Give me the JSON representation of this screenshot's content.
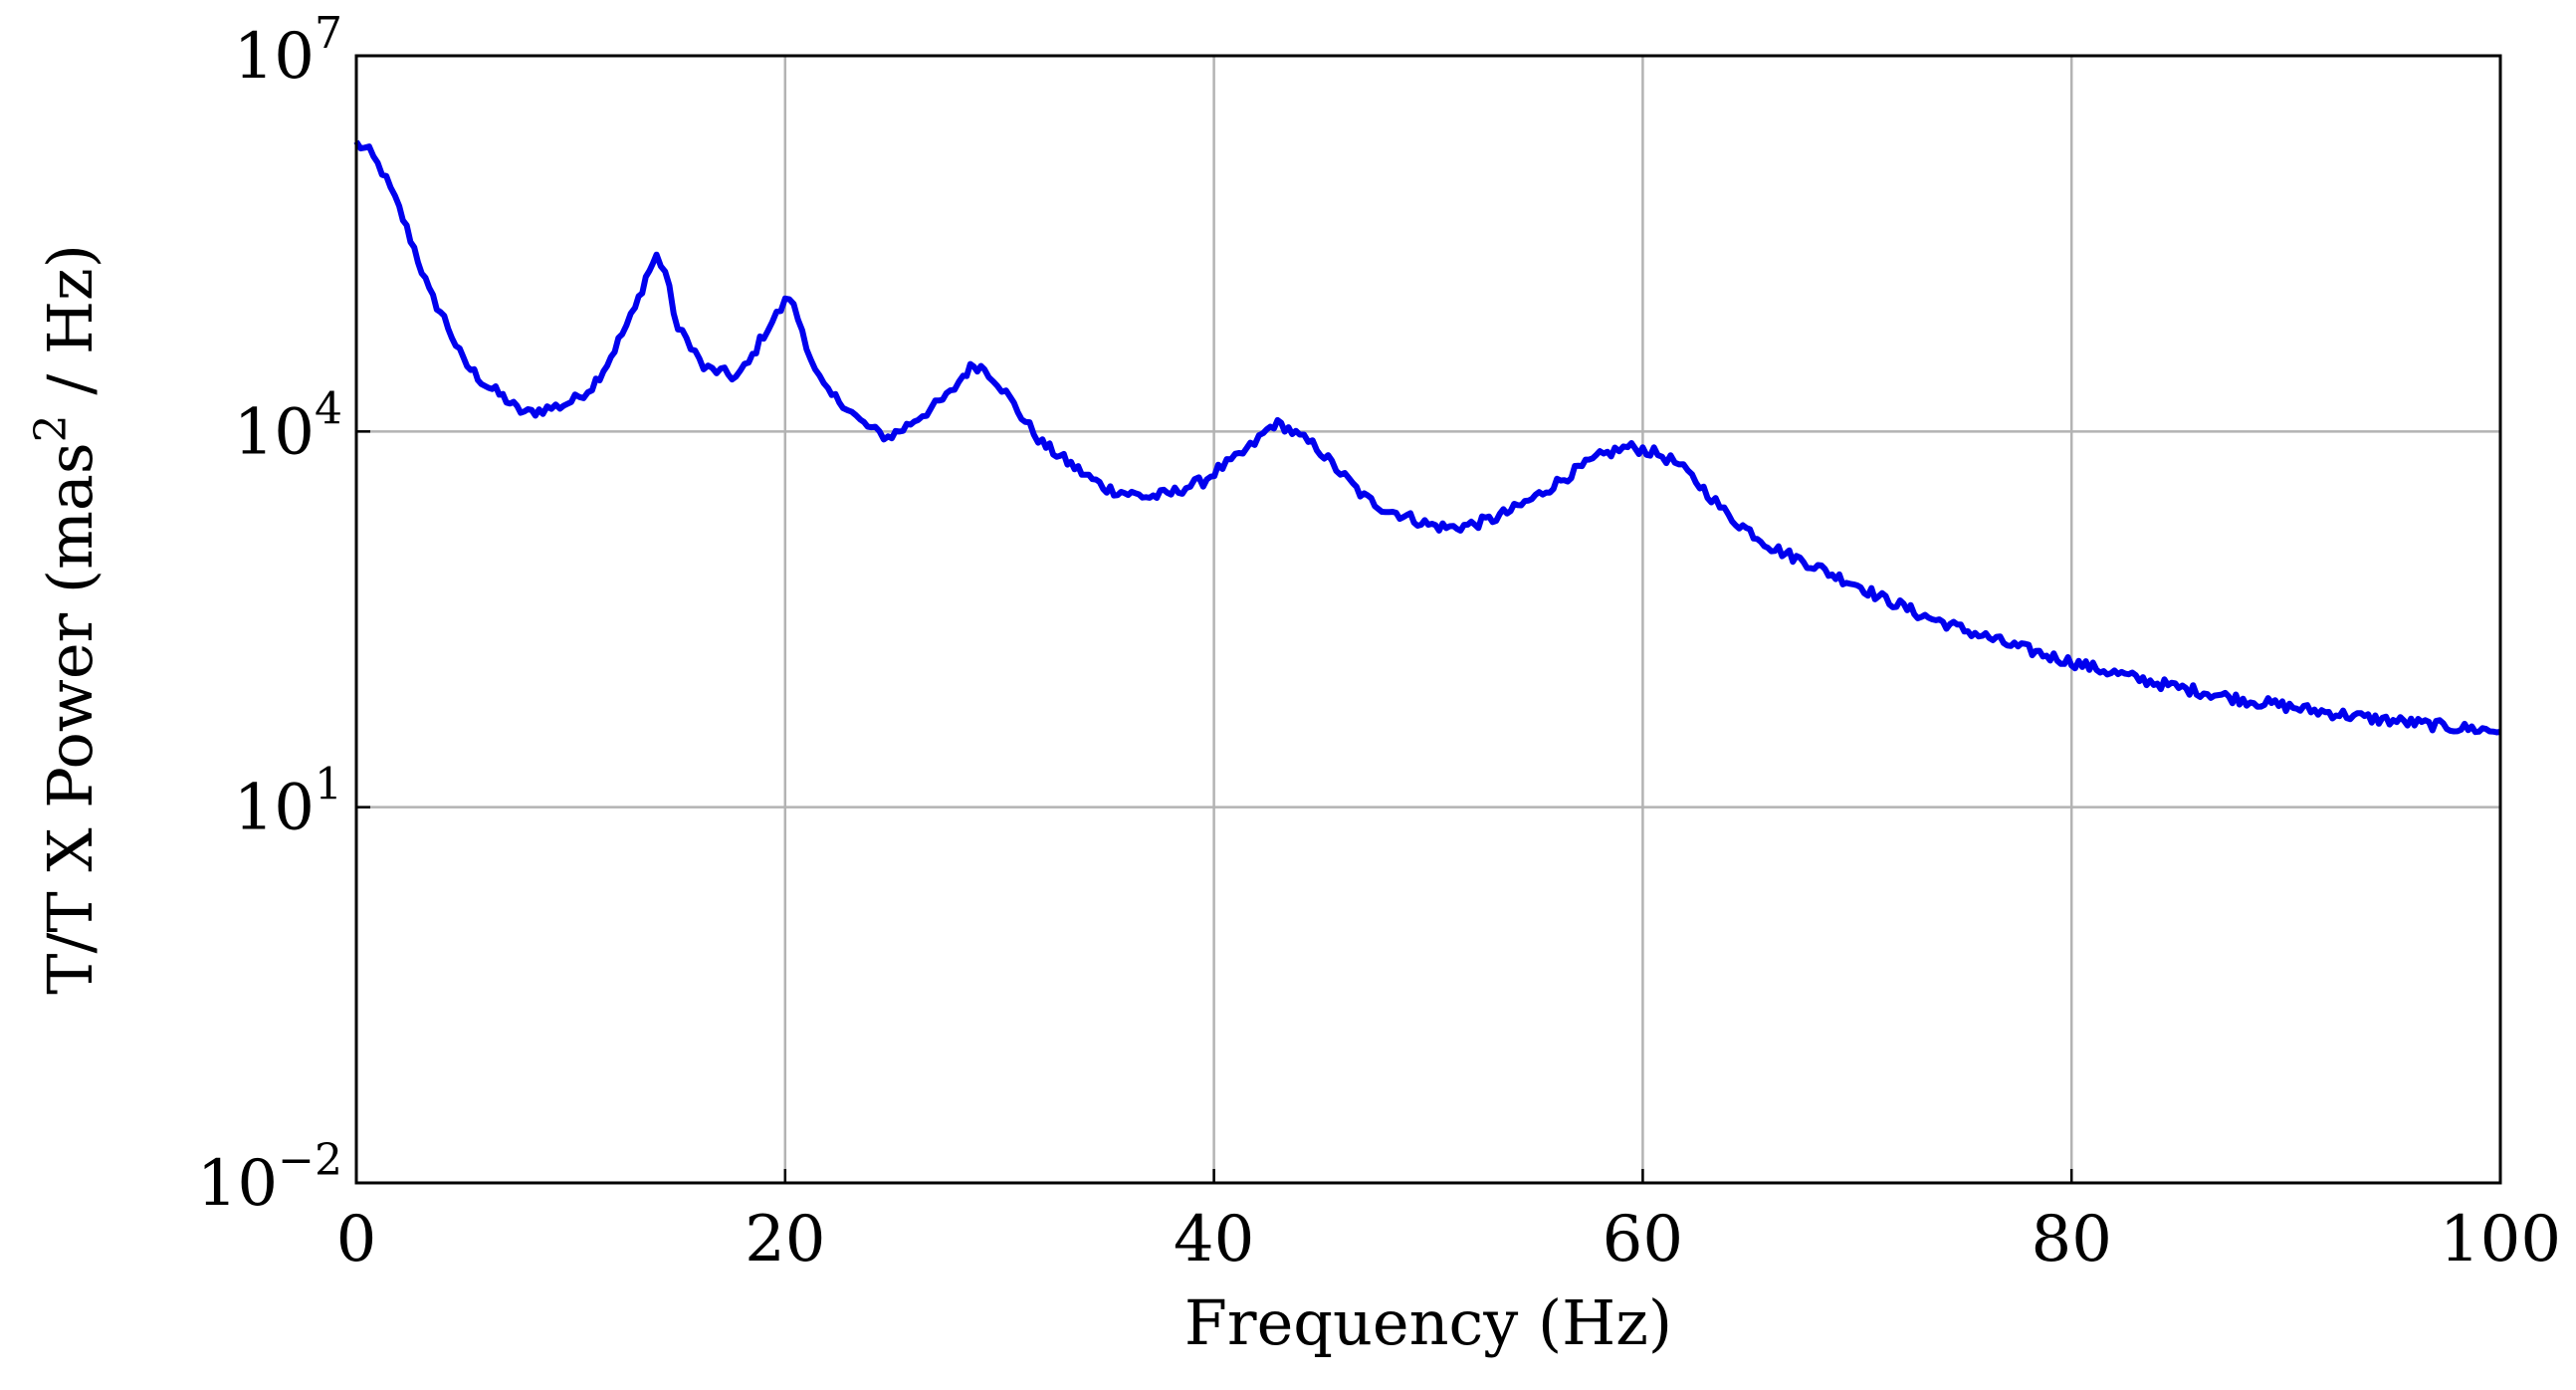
{
  "chart_data": {
    "type": "line",
    "title": "",
    "xlabel": "Frequency (Hz)",
    "ylabel": "T/T X Power (mas² / Hz)",
    "ylabel_parts": {
      "pre": "T/T X Power (mas",
      "sup": "2",
      "post": " / Hz)"
    },
    "xlim": [
      0,
      100
    ],
    "ylim": [
      0.01,
      10000000
    ],
    "yscale": "log",
    "grid": true,
    "x_ticks": [
      {
        "value": 0,
        "label": "0"
      },
      {
        "value": 20,
        "label": "20"
      },
      {
        "value": 40,
        "label": "40"
      },
      {
        "value": 60,
        "label": "60"
      },
      {
        "value": 80,
        "label": "80"
      },
      {
        "value": 100,
        "label": "100"
      }
    ],
    "y_ticks": [
      {
        "value": 0.01,
        "base": "10",
        "exp": "−2"
      },
      {
        "value": 10,
        "base": "10",
        "exp": "1"
      },
      {
        "value": 10000,
        "base": "10",
        "exp": "4"
      },
      {
        "value": 10000000,
        "base": "10",
        "exp": "7"
      }
    ],
    "series": [
      {
        "color": "#0000ee",
        "x": [
          0,
          0.6,
          1.2,
          2,
          2.7,
          3.4,
          4.1,
          5,
          6,
          7,
          7.5,
          8,
          8.7,
          9.5,
          10.2,
          11,
          11.7,
          12.4,
          13,
          13.5,
          14,
          14.4,
          15,
          15.6,
          16.2,
          17,
          17.7,
          18.3,
          19,
          19.6,
          20.2,
          20.8,
          21.4,
          22,
          22.7,
          23.5,
          24.2,
          24.8,
          25.5,
          26.2,
          27,
          27.7,
          28.3,
          28.8,
          29.3,
          29.9,
          30.5,
          31.2,
          32,
          33,
          34,
          35,
          36,
          37,
          38,
          38.7,
          39.5,
          40.2,
          41,
          41.7,
          42.3,
          42.8,
          43.3,
          44,
          44.8,
          45.5,
          46.3,
          47,
          48,
          49,
          50,
          51,
          52,
          53,
          54,
          55,
          56,
          57,
          58,
          58.7,
          59.3,
          60,
          60.7,
          61.5,
          62.3,
          63.2,
          64,
          65,
          66,
          67,
          68,
          69,
          70,
          71,
          72,
          73,
          74,
          75,
          76,
          77,
          78,
          79,
          80,
          81,
          82,
          83,
          84,
          85,
          86,
          87,
          88,
          89,
          90,
          91,
          92,
          93,
          94,
          95,
          96,
          97,
          98,
          99,
          100
        ],
        "values": [
          2000000,
          1700000,
          1200000,
          600000,
          290000,
          130000,
          80000,
          36000,
          24000,
          18000,
          15000,
          14000,
          15000,
          16000,
          18000,
          23000,
          35000,
          60000,
          95000,
          170000,
          250000,
          190000,
          65000,
          50000,
          32000,
          30000,
          27000,
          35000,
          60000,
          85000,
          120000,
          65000,
          30000,
          20000,
          17000,
          12000,
          10000,
          9000,
          10500,
          13000,
          16000,
          20000,
          28000,
          34000,
          32000,
          25000,
          18000,
          12000,
          8000,
          6000,
          4500,
          3500,
          3200,
          3000,
          3200,
          3600,
          4000,
          5000,
          6000,
          7500,
          9500,
          11500,
          11000,
          9000,
          7500,
          5500,
          4000,
          3000,
          2400,
          2100,
          1800,
          1700,
          1800,
          2000,
          2400,
          3000,
          3900,
          5000,
          6300,
          7000,
          7500,
          7200,
          6600,
          5700,
          4300,
          3000,
          2100,
          1600,
          1200,
          1000,
          850,
          700,
          600,
          480,
          410,
          340,
          300,
          260,
          230,
          200,
          180,
          160,
          145,
          130,
          118,
          107,
          98,
          90,
          84,
          78,
          72,
          68,
          64,
          60,
          57,
          54,
          51,
          49,
          47,
          45,
          43,
          42,
          40
        ]
      }
    ]
  }
}
